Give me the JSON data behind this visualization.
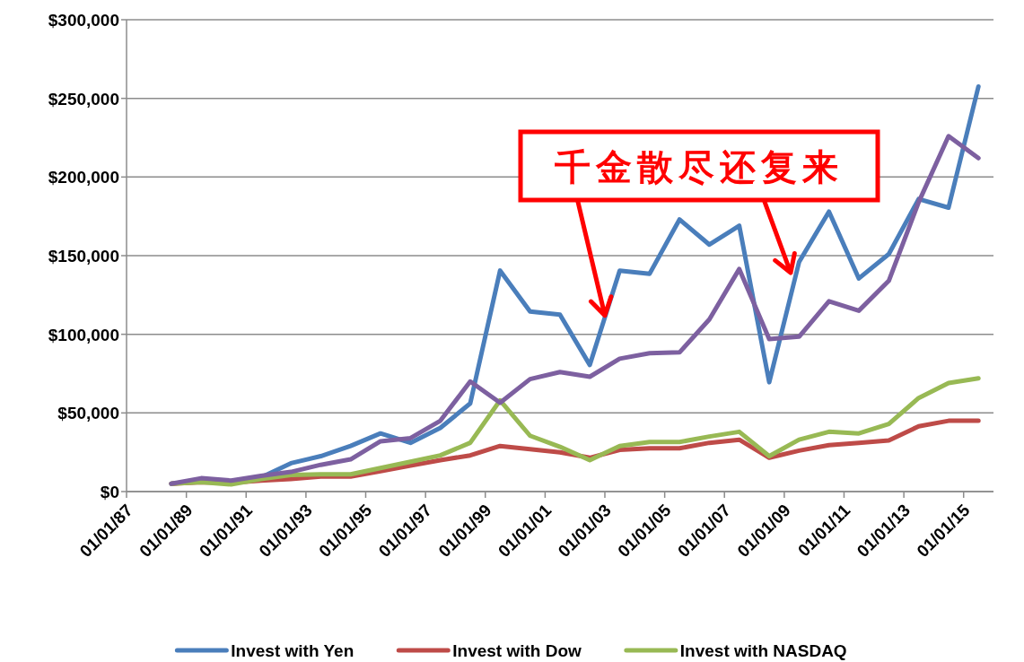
{
  "chart_data": {
    "type": "line",
    "x": [
      "1988-07-01",
      "1989-07-01",
      "1990-07-01",
      "1991-07-01",
      "1992-07-01",
      "1993-07-01",
      "1994-07-01",
      "1995-07-01",
      "1996-07-01",
      "1997-07-01",
      "1998-07-01",
      "1999-07-01",
      "2000-07-01",
      "2001-07-01",
      "2002-07-01",
      "2003-07-01",
      "2004-07-01",
      "2005-07-01",
      "2006-07-01",
      "2007-07-01",
      "2008-07-01",
      "2009-07-01",
      "2010-07-01",
      "2011-07-01",
      "2012-07-01",
      "2013-07-01",
      "2014-07-01",
      "2015-07-01"
    ],
    "series": [
      {
        "name": "Invest with Yen",
        "color": "#4a7ebb",
        "values": [
          5000,
          7000,
          6000,
          9000,
          18000,
          22500,
          29000,
          37000,
          31000,
          40500,
          56000,
          140500,
          114500,
          112500,
          80500,
          140500,
          138500,
          173000,
          157000,
          169000,
          69500,
          146000,
          178000,
          135500,
          151000,
          186000,
          180500,
          257500
        ]
      },
      {
        "name": "Invest with Dow",
        "color": "#be4b48",
        "values": [
          5000,
          6000,
          5500,
          7000,
          8000,
          9500,
          9500,
          13000,
          16500,
          20000,
          23000,
          29000,
          27000,
          25000,
          21500,
          26500,
          27500,
          27500,
          31000,
          33000,
          21500,
          26000,
          29500,
          31000,
          32500,
          41500,
          45000,
          45000
        ]
      },
      {
        "name": "Invest with NASDAQ",
        "color": "#98b954",
        "values": [
          5000,
          6000,
          4500,
          8000,
          10500,
          11000,
          11000,
          15000,
          19000,
          23000,
          31000,
          58000,
          35500,
          28500,
          20000,
          29000,
          31500,
          31500,
          35000,
          38000,
          22500,
          33000,
          38000,
          37000,
          43000,
          59500,
          69000,
          72000
        ]
      },
      {
        "color": "#7d60a0",
        "values": [
          5000,
          8500,
          7000,
          10000,
          12500,
          17000,
          20500,
          32000,
          34000,
          45000,
          70000,
          56500,
          71500,
          76000,
          73000,
          84500,
          88000,
          88500,
          109500,
          141500,
          97000,
          98500,
          121000,
          115000,
          134000,
          184000,
          226000,
          212000
        ]
      }
    ],
    "xlim": [
      "1987-01-01",
      "2016-01-01"
    ],
    "xticks": [
      {
        "value": "1987-01-01",
        "label": "01/01/87"
      },
      {
        "value": "1989-01-01",
        "label": "01/01/89"
      },
      {
        "value": "1991-01-01",
        "label": "01/01/91"
      },
      {
        "value": "1993-01-01",
        "label": "01/01/93"
      },
      {
        "value": "1995-01-01",
        "label": "01/01/95"
      },
      {
        "value": "1997-01-01",
        "label": "01/01/97"
      },
      {
        "value": "1999-01-01",
        "label": "01/01/99"
      },
      {
        "value": "2001-01-01",
        "label": "01/01/01"
      },
      {
        "value": "2003-01-01",
        "label": "01/01/03"
      },
      {
        "value": "2005-01-01",
        "label": "01/01/05"
      },
      {
        "value": "2007-01-01",
        "label": "01/01/07"
      },
      {
        "value": "2009-01-01",
        "label": "01/01/09"
      },
      {
        "value": "2011-01-01",
        "label": "01/01/11"
      },
      {
        "value": "2013-01-01",
        "label": "01/01/13"
      },
      {
        "value": "2015-01-01",
        "label": "01/01/15"
      }
    ],
    "ylim": [
      0,
      300000
    ],
    "yticks": [
      {
        "value": 0,
        "label": "$0"
      },
      {
        "value": 50000,
        "label": "$50,000"
      },
      {
        "value": 100000,
        "label": "$100,000"
      },
      {
        "value": 150000,
        "label": "$150,000"
      },
      {
        "value": 200000,
        "label": "$200,000"
      },
      {
        "value": 250000,
        "label": "$250,000"
      },
      {
        "value": 300000,
        "label": "$300,000"
      }
    ],
    "grid": "y",
    "legend": "bottom",
    "marker": "none",
    "line_style": "solid",
    "annotations": [
      {
        "text": "千金散尽还复来",
        "x": "2003-01-01",
        "y": 112000
      }
    ]
  }
}
